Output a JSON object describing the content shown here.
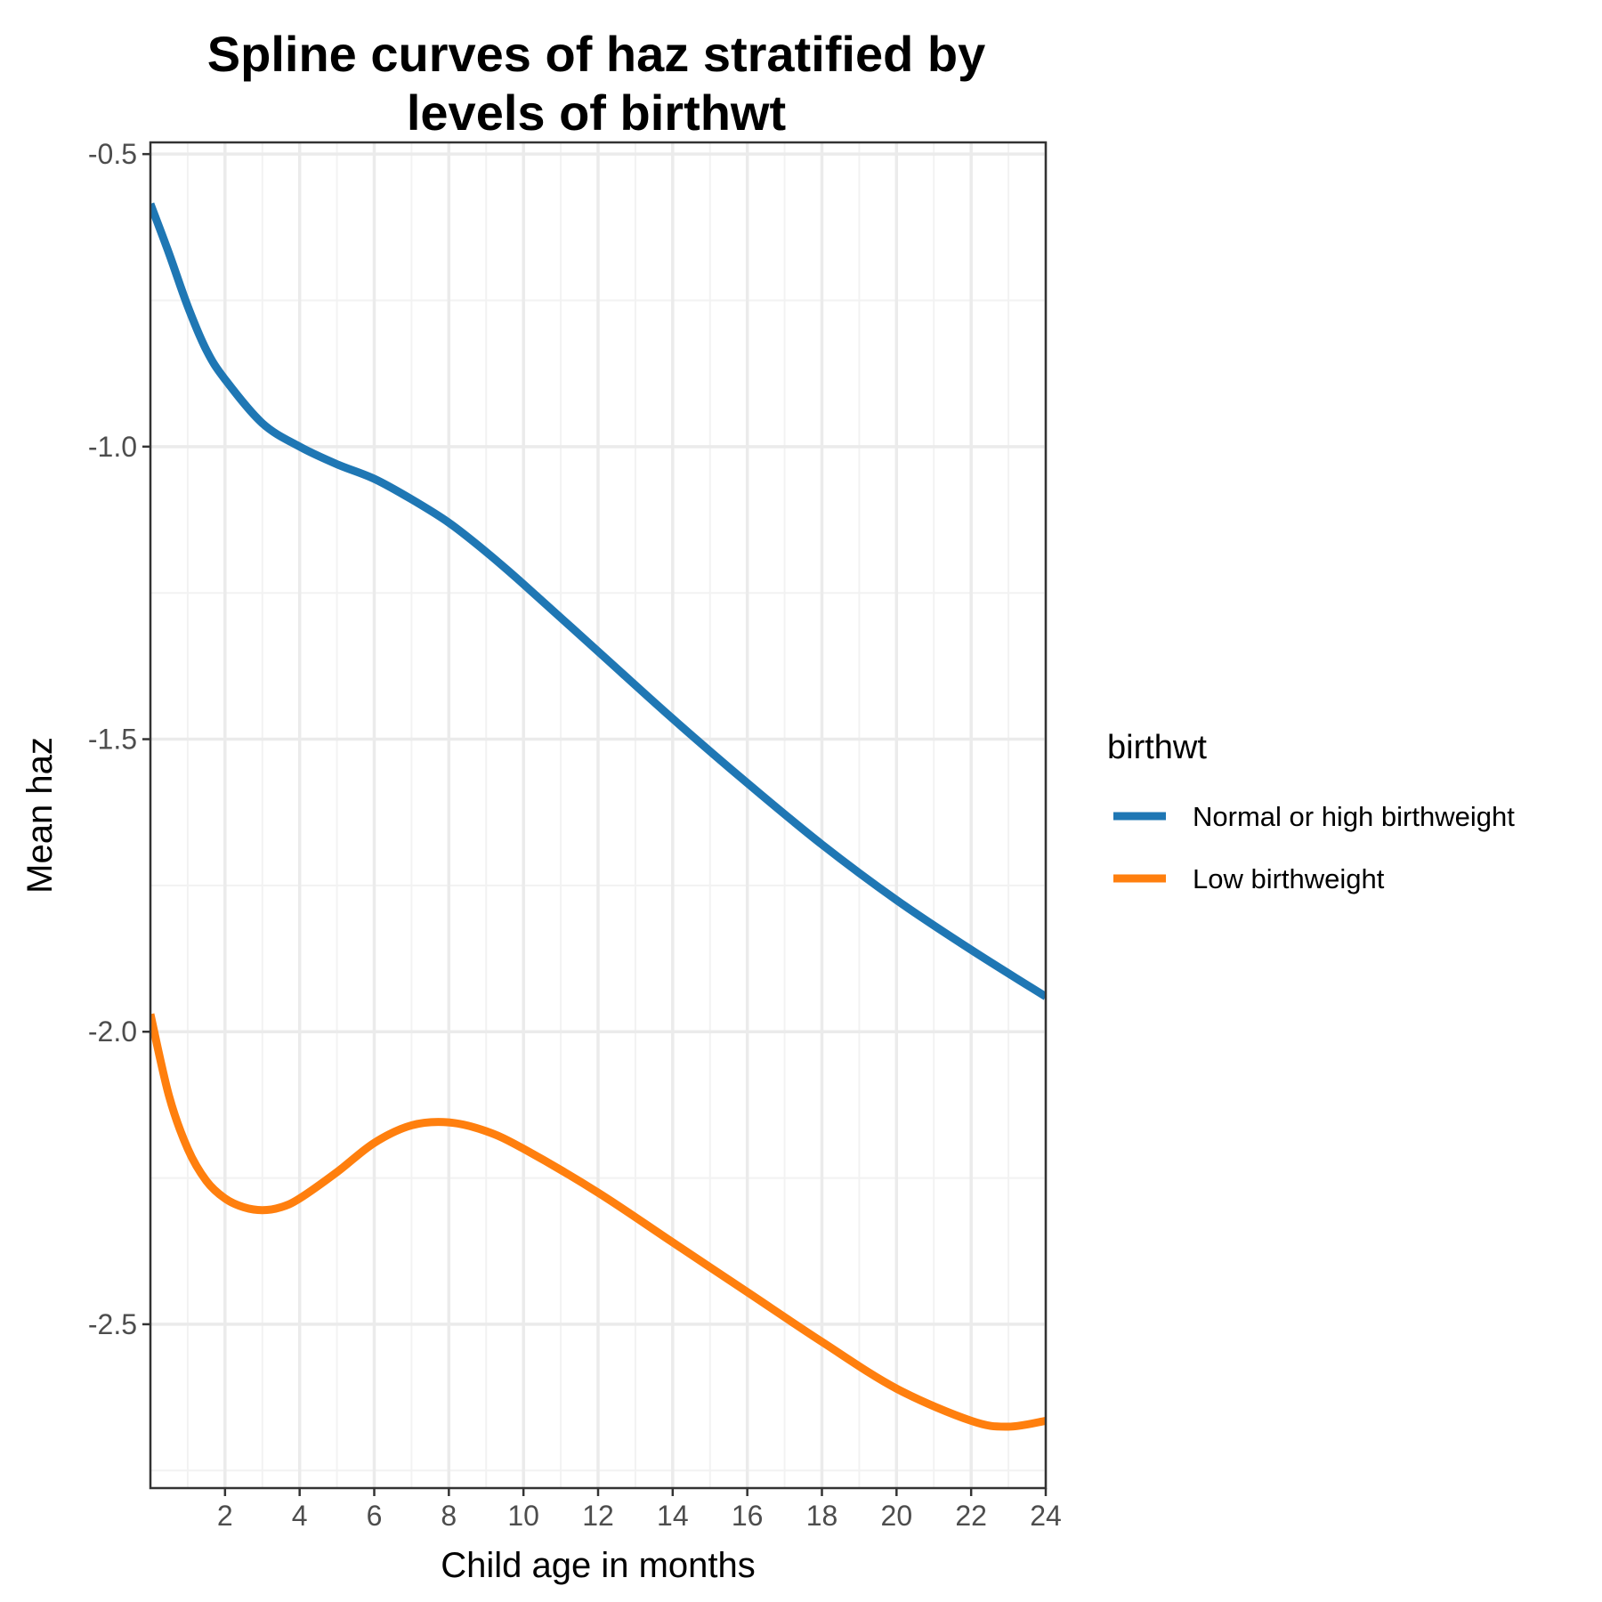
{
  "chart_data": {
    "type": "line",
    "title_lines": [
      "Spline curves of haz stratified by",
      "levels of birthwt"
    ],
    "xlabel": "Child age in months",
    "ylabel": "Mean haz",
    "xlim": [
      0,
      24
    ],
    "ylim": [
      -2.78,
      -0.48
    ],
    "x_ticks": [
      2,
      4,
      6,
      8,
      10,
      12,
      14,
      16,
      18,
      20,
      22,
      24
    ],
    "x_tick_labels": [
      "2",
      "4",
      "6",
      "8",
      "10",
      "12",
      "14",
      "16",
      "18",
      "20",
      "22",
      "24"
    ],
    "y_ticks": [
      -0.5,
      -1.0,
      -1.5,
      -2.0,
      -2.5
    ],
    "y_tick_labels": [
      "-0.5",
      "-1.0",
      "-1.5",
      "-2.0",
      "-2.5"
    ],
    "grid": true,
    "legend": {
      "title": "birthwt",
      "position": "right"
    },
    "series": [
      {
        "name": "Normal or high birthweight",
        "color": "#1f77b4",
        "x": [
          0,
          0.5,
          1,
          1.5,
          2,
          3,
          4,
          5,
          6,
          7,
          8,
          9,
          10,
          12,
          14,
          16,
          18,
          20,
          22,
          24
        ],
        "y": [
          -0.585,
          -0.67,
          -0.76,
          -0.835,
          -0.885,
          -0.96,
          -1.0,
          -1.03,
          -1.055,
          -1.09,
          -1.13,
          -1.18,
          -1.235,
          -1.35,
          -1.465,
          -1.575,
          -1.68,
          -1.775,
          -1.86,
          -1.94
        ]
      },
      {
        "name": "Low birthweight",
        "color": "#ff7f0e",
        "x": [
          0,
          0.5,
          1,
          1.5,
          2,
          2.5,
          3,
          3.5,
          4,
          5,
          6,
          7,
          8,
          9,
          10,
          12,
          14,
          16,
          18,
          20,
          22,
          23,
          24
        ],
        "y": [
          -1.97,
          -2.11,
          -2.2,
          -2.255,
          -2.285,
          -2.3,
          -2.305,
          -2.3,
          -2.285,
          -2.24,
          -2.19,
          -2.16,
          -2.155,
          -2.17,
          -2.2,
          -2.275,
          -2.36,
          -2.445,
          -2.53,
          -2.61,
          -2.665,
          -2.675,
          -2.665
        ]
      }
    ]
  }
}
